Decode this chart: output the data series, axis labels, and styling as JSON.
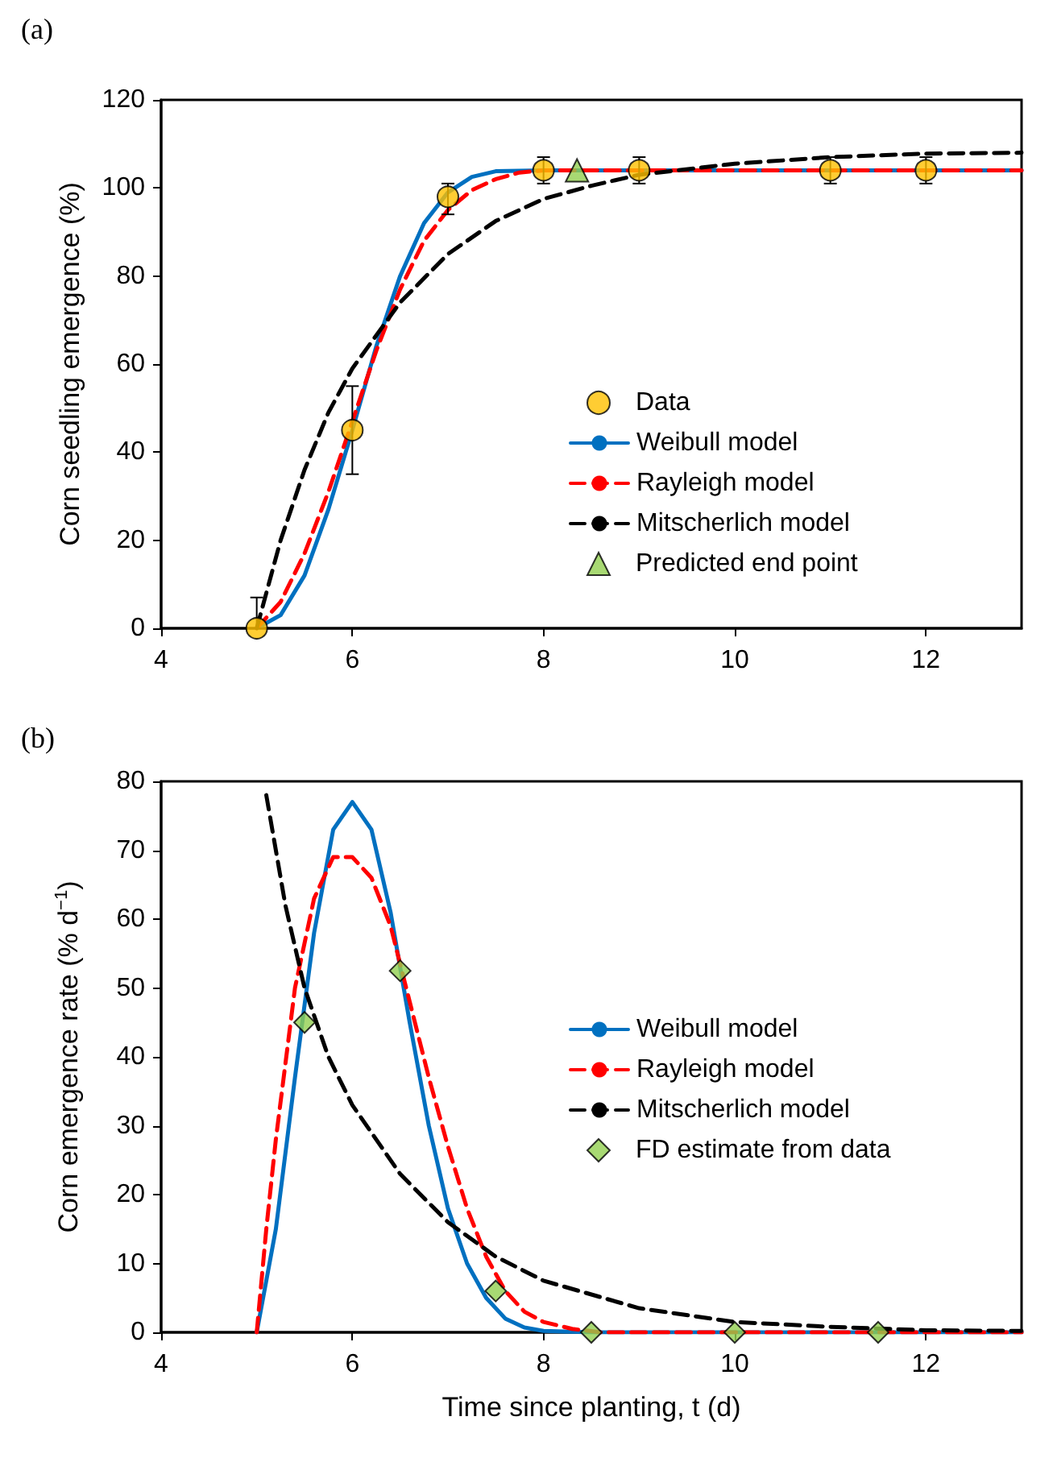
{
  "chart_data": [
    {
      "type": "line",
      "title": "(a)",
      "ylabel": "Corn seedling emergence (%)",
      "xlim": [
        4,
        13
      ],
      "xticks": [
        4,
        6,
        8,
        10,
        12
      ],
      "ylim": [
        0,
        120
      ],
      "yticks": [
        0,
        20,
        40,
        60,
        80,
        100,
        120
      ],
      "grid": false,
      "legend": "bottom right",
      "series": [
        {
          "name": "Data",
          "type": "scatter",
          "marker": "circle",
          "color": "#ffc000",
          "x": [
            5,
            6,
            7,
            8,
            9,
            11,
            12
          ],
          "values": [
            0,
            45,
            98,
            104,
            104,
            104,
            104
          ],
          "errors": [
            [
              0,
              7
            ],
            [
              35,
              55
            ],
            [
              94,
              101
            ],
            [
              101,
              107
            ],
            [
              101,
              107
            ],
            [
              101,
              107
            ],
            [
              101,
              107
            ]
          ]
        },
        {
          "name": "Weibull model",
          "marker": "none",
          "line_style": "solid",
          "color": "#0070c0",
          "x": [
            5,
            5.25,
            5.5,
            5.75,
            6,
            6.25,
            6.5,
            6.75,
            7,
            7.25,
            7.5,
            8,
            13
          ],
          "values": [
            0,
            3,
            12,
            27,
            45,
            64,
            80,
            92,
            99,
            102.5,
            103.8,
            104,
            104
          ]
        },
        {
          "name": "Rayleigh model",
          "marker": "none",
          "line_style": "dashed",
          "color": "#ff0000",
          "x": [
            5,
            5.25,
            5.5,
            5.75,
            6,
            6.25,
            6.5,
            6.75,
            7,
            7.25,
            7.5,
            7.75,
            8,
            13
          ],
          "values": [
            0,
            6,
            17,
            31,
            47,
            63,
            77,
            88,
            95,
            99.5,
            102,
            103.5,
            104,
            104
          ]
        },
        {
          "name": "Mitscherlich model",
          "marker": "none",
          "line_style": "dashed",
          "color": "#000000",
          "x": [
            5,
            5.25,
            5.5,
            5.75,
            6,
            6.5,
            7,
            7.5,
            8,
            8.5,
            9,
            10,
            11,
            12,
            13
          ],
          "values": [
            0,
            20,
            36,
            49,
            59,
            74,
            85,
            92.5,
            97.5,
            100.5,
            103,
            105.5,
            107,
            107.8,
            108
          ]
        },
        {
          "name": "Predicted end point",
          "type": "scatter",
          "marker": "triangle",
          "color": "#92d050",
          "x": [
            8.35
          ],
          "values": [
            104
          ]
        }
      ]
    },
    {
      "type": "line",
      "title": "(b)",
      "xlabel": "Time since planting, t (d)",
      "ylabel": "Corn emergence rate (% d$^{−1}$)",
      "xlim": [
        4,
        13
      ],
      "xticks": [
        4,
        6,
        8,
        10,
        12
      ],
      "ylim": [
        0,
        80
      ],
      "yticks": [
        0,
        10,
        20,
        30,
        40,
        50,
        60,
        70,
        80
      ],
      "grid": false,
      "legend": "right",
      "series": [
        {
          "name": "Weibull model",
          "marker": "none",
          "line_style": "solid",
          "color": "#0070c0",
          "x": [
            5,
            5.2,
            5.4,
            5.6,
            5.8,
            6,
            6.2,
            6.4,
            6.6,
            6.8,
            7,
            7.2,
            7.4,
            7.6,
            7.8,
            8,
            8.5,
            13
          ],
          "values": [
            0,
            15,
            37,
            58,
            73,
            77,
            73,
            61,
            45,
            30,
            18,
            10,
            5,
            2,
            0.7,
            0.2,
            0,
            0
          ]
        },
        {
          "name": "Rayleigh model",
          "marker": "none",
          "line_style": "dashed",
          "color": "#ff0000",
          "x": [
            5,
            5.1,
            5.2,
            5.4,
            5.6,
            5.8,
            6,
            6.2,
            6.4,
            6.6,
            6.8,
            7,
            7.2,
            7.4,
            7.6,
            7.8,
            8,
            8.3,
            8.6,
            13
          ],
          "values": [
            0,
            15,
            28,
            50,
            63,
            69,
            69,
            66,
            59,
            48,
            37,
            27,
            18,
            11,
            6,
            3,
            1.5,
            0.5,
            0,
            0
          ]
        },
        {
          "name": "Mitscherlich model",
          "marker": "none",
          "line_style": "dashed",
          "color": "#000000",
          "x": [
            5.1,
            5.3,
            5.5,
            5.75,
            6,
            6.5,
            7,
            7.5,
            8,
            9,
            10,
            11,
            12,
            13
          ],
          "values": [
            78,
            62,
            50,
            40,
            33,
            23,
            16,
            11,
            7.5,
            3.5,
            1.5,
            0.8,
            0.3,
            0.2
          ]
        },
        {
          "name": "FD estimate from data",
          "type": "scatter",
          "marker": "diamond",
          "color": "#92d050",
          "x": [
            5.5,
            6.5,
            7.5,
            8.5,
            10,
            11.5
          ],
          "values": [
            45,
            52.5,
            6,
            0,
            0,
            0
          ]
        }
      ]
    }
  ]
}
